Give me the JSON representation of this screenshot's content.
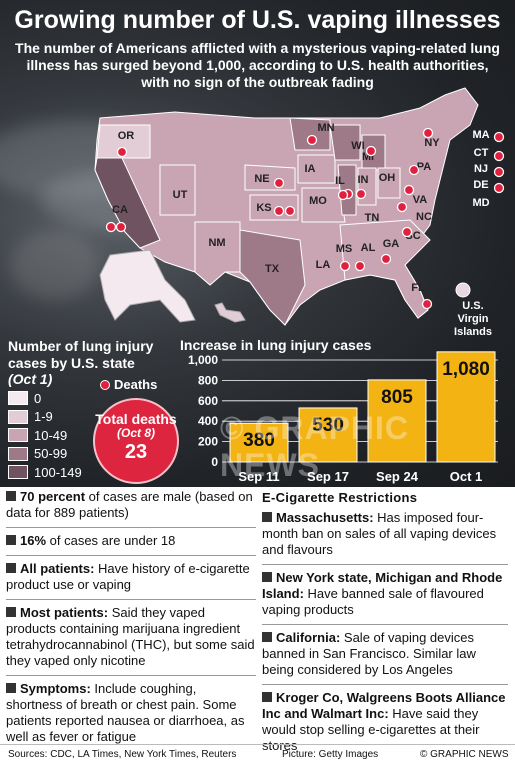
{
  "title": "Growing number of U.S. vaping illnesses",
  "subtitle": "The number of Americans afflicted with a mysterious vaping-related lung illness has surged beyond 1,000, according to U.S. health authorities, with no sign of the outbreak fading",
  "map": {
    "states": [
      "OR",
      "CA",
      "UT",
      "NM",
      "TX",
      "NE",
      "KS",
      "MN",
      "IA",
      "MO",
      "WI",
      "MI",
      "IL",
      "IN",
      "OH",
      "PA",
      "NY",
      "VA",
      "NC",
      "TN",
      "SC",
      "GA",
      "AL",
      "MS",
      "LA",
      "FL",
      "MA",
      "CT",
      "NJ",
      "DE",
      "MD"
    ],
    "territory_label": "U.S. Virgin Islands"
  },
  "legend": {
    "title": "Number of lung injury cases by U.S. state",
    "date": "(Oct 1)",
    "bins": [
      {
        "label": "0",
        "color": "#f3e9ee"
      },
      {
        "label": "1-9",
        "color": "#e2cdd6"
      },
      {
        "label": "10-49",
        "color": "#c9a4b3"
      },
      {
        "label": "50-99",
        "color": "#9e7a89"
      },
      {
        "label": "100-149",
        "color": "#6f5361"
      }
    ],
    "deaths_label": "Deaths"
  },
  "total_deaths": {
    "label": "Total deaths",
    "date": "(Oct 8)",
    "value": "23"
  },
  "chart_data": {
    "type": "bar",
    "title": "Increase in lung injury cases",
    "categories": [
      "Sep 11",
      "Sep 17",
      "Sep 24",
      "Oct 1"
    ],
    "values": [
      380,
      530,
      805,
      1080
    ],
    "data_labels": [
      "380",
      "530",
      "805",
      "1,080"
    ],
    "ylim": [
      0,
      1000
    ],
    "yticks": [
      "0",
      "200",
      "400",
      "600",
      "800",
      "1,000"
    ],
    "bar_color": "#f2b313"
  },
  "watermark": "© GRAPHIC NEWS",
  "facts": [
    {
      "bold": "70 percent",
      "text": " of cases are male (based on data for 889 patients)"
    },
    {
      "bold": "16%",
      "text": " of cases are under 18"
    },
    {
      "bold": "All patients:",
      "text": " Have history of e-cigarette product use or vaping"
    },
    {
      "bold": "Most patients:",
      "text": " Said they vaped products containing marijuana ingredient tetrahydrocannabinol (THC), but some said they vaped only nicotine"
    },
    {
      "bold": "Symptoms:",
      "text": " Include coughing, shortness of breath or chest pain. Some patients reported nausea or diarrhoea, as well as fever or fatigue"
    }
  ],
  "restrictions_title": "E-Cigarette Restrictions",
  "restrictions": [
    {
      "bold": "Massachusetts:",
      "text": " Has imposed four-month ban on sales of all vaping devices and flavours"
    },
    {
      "bold": "New York state, Michigan and Rhode Island:",
      "text": " Have banned sale of flavoured vaping products"
    },
    {
      "bold": "California:",
      "text": " Sale of vaping devices banned in San Francisco. Similar law being considered by Los Angeles"
    },
    {
      "bold": "Kroger Co, Walgreens Boots Alliance Inc and Walmart Inc:",
      "text": " Have said they would stop selling e-cigarettes at their stores"
    }
  ],
  "footer": {
    "sources": "Sources: CDC, LA Times, New York Times, Reuters",
    "picture": "Picture: Getty Images",
    "credit": "© GRAPHIC NEWS"
  }
}
